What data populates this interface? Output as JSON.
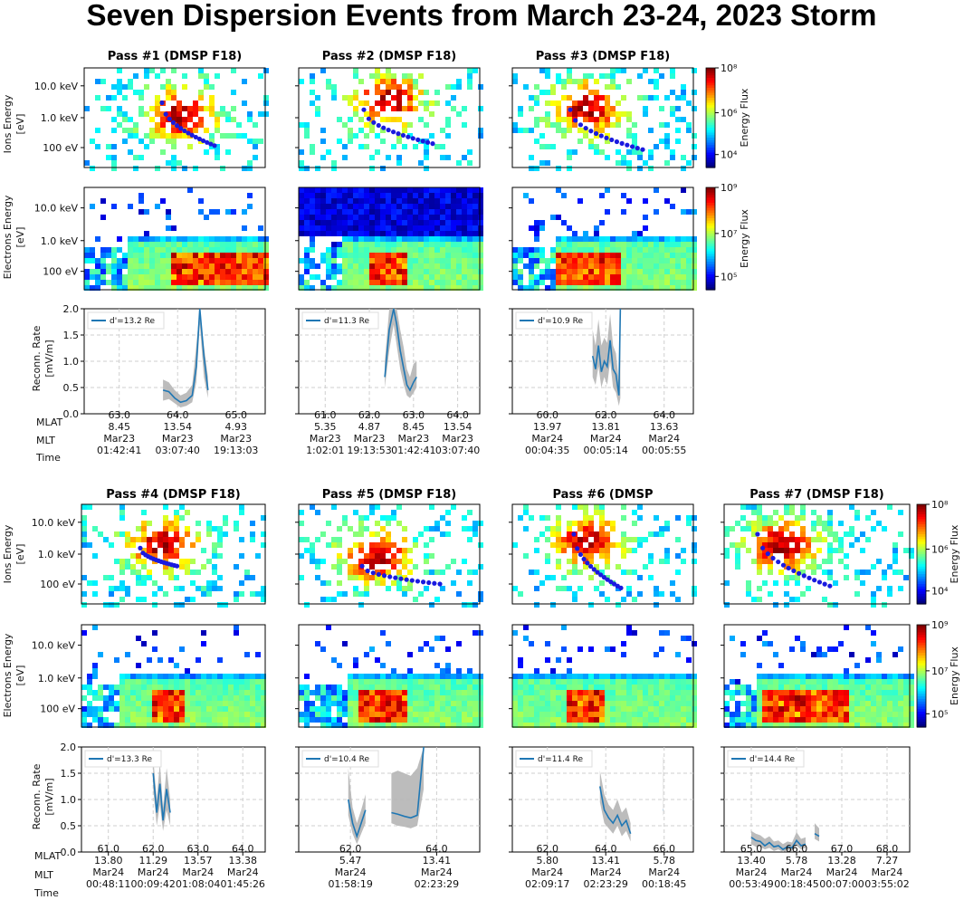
{
  "title": "Seven Dispersion Events from March 23-24, 2023 Storm",
  "row_labels": {
    "ions": [
      "Ions Energy",
      "[eV]"
    ],
    "electrons": [
      "Electrons Energy",
      "[eV]"
    ],
    "recon": [
      "Reconn. Rate",
      "[mV/m]"
    ],
    "mlat": "MLAT",
    "mlt": "MLT",
    "time": "Time"
  },
  "energy_ticks": [
    "10.0 keV",
    "1.0 keV",
    "100 eV"
  ],
  "colorbars": {
    "label": "Energy Flux",
    "ions_ticks": [
      "10⁸",
      "10⁶",
      "10⁴"
    ],
    "electrons_ticks": [
      "10⁹",
      "10⁷",
      "10⁵"
    ]
  },
  "colors": {
    "line": "#1f77b4",
    "band": "#b5b5b5",
    "fit": "#1a1adf",
    "grid": "#cfcfcf"
  },
  "chart_data": [
    {
      "type": "line",
      "title": "Pass #1 (DMSP F18)",
      "legend": "d'=13.2 Re",
      "ylim": [
        0.0,
        2.0
      ],
      "yticks": [
        "2.0",
        "1.5",
        "1.0",
        "0.5",
        "0.0"
      ],
      "xticks": [
        {
          "mlat": "63.0",
          "mlt": "8.45",
          "date": "Mar23",
          "time": "01:42:41"
        },
        {
          "mlat": "64.0",
          "mlt": "13.54",
          "date": "Mar23",
          "time": "03:07:40"
        },
        {
          "mlat": "65.0",
          "mlt": "4.93",
          "date": "Mar23",
          "time": "19:13:03"
        }
      ],
      "segments": [
        {
          "x": [
            63.75,
            63.85,
            63.95,
            64.05,
            64.15,
            64.25,
            64.32,
            64.38,
            64.45,
            64.52
          ],
          "y": [
            0.45,
            0.42,
            0.3,
            0.22,
            0.25,
            0.35,
            0.9,
            2.0,
            1.1,
            0.45
          ],
          "lo": [
            0.25,
            0.28,
            0.2,
            0.12,
            0.15,
            0.22,
            0.6,
            1.7,
            0.7,
            0.3
          ],
          "hi": [
            0.65,
            0.6,
            0.45,
            0.35,
            0.4,
            0.55,
            1.3,
            2.0,
            1.3,
            0.7
          ]
        }
      ]
    },
    {
      "type": "line",
      "title": "Pass #2 (DMSP F18)",
      "legend": "d'=11.3 Re",
      "ylim": [
        0.0,
        2.0
      ],
      "yticks": [],
      "xticks": [
        {
          "mlat": "61.0",
          "mlt": "5.35",
          "date": "Mar23",
          "time": "1:02:01"
        },
        {
          "mlat": "62.0",
          "mlt": "4.87",
          "date": "Mar23",
          "time": "19:13:53"
        },
        {
          "mlat": "63.0",
          "mlt": "8.45",
          "date": "Mar23",
          "time": "01:42:41"
        },
        {
          "mlat": "64.0",
          "mlt": "13.54",
          "date": "Mar23",
          "time": "03:07:40"
        }
      ],
      "segments": [
        {
          "x": [
            62.35,
            62.45,
            62.55,
            62.62,
            62.7,
            62.78,
            62.85,
            62.92,
            63.0,
            63.07
          ],
          "y": [
            0.7,
            1.6,
            2.0,
            1.7,
            1.2,
            0.85,
            0.55,
            0.45,
            0.6,
            0.7
          ],
          "lo": [
            0.5,
            1.2,
            1.7,
            1.3,
            0.85,
            0.55,
            0.35,
            0.3,
            0.4,
            0.5
          ],
          "hi": [
            1.0,
            2.0,
            2.0,
            2.0,
            1.6,
            1.25,
            0.85,
            0.7,
            0.95,
            1.0
          ]
        }
      ]
    },
    {
      "type": "line",
      "title": "Pass #3 (DMSP F18)",
      "legend": "d'=10.9 Re",
      "ylim": [
        0.0,
        2.0
      ],
      "yticks": [],
      "xticks": [
        {
          "mlat": "60.0",
          "mlt": "13.97",
          "date": "Mar24",
          "time": "00:04:35"
        },
        {
          "mlat": "62.0",
          "mlt": "13.81",
          "date": "Mar24",
          "time": "00:05:14"
        },
        {
          "mlat": "64.0",
          "mlt": "13.63",
          "date": "Mar24",
          "time": "00:05:55"
        }
      ],
      "segments": [
        {
          "x": [
            61.55,
            61.65,
            61.75,
            61.85,
            61.95,
            62.05,
            62.15,
            62.25,
            62.35,
            62.45,
            62.5
          ],
          "y": [
            1.1,
            0.85,
            1.3,
            0.8,
            1.0,
            0.9,
            1.4,
            0.85,
            0.75,
            0.35,
            2.0
          ],
          "lo": [
            0.7,
            0.55,
            0.9,
            0.5,
            0.7,
            0.55,
            1.0,
            0.5,
            0.4,
            0.15,
            0.3
          ],
          "hi": [
            1.6,
            1.3,
            1.8,
            1.3,
            1.45,
            1.35,
            1.9,
            1.3,
            1.15,
            0.6,
            2.0
          ]
        }
      ]
    },
    {
      "type": "line",
      "title": "Pass #4 (DMSP F18)",
      "legend": "d'=13.3 Re",
      "ylim": [
        0.0,
        2.0
      ],
      "yticks": [
        "2.0",
        "1.5",
        "1.0",
        "0.5",
        "0.0"
      ],
      "xticks": [
        {
          "mlat": "61.0",
          "mlt": "13.80",
          "date": "Mar24",
          "time": "00:48:11"
        },
        {
          "mlat": "62.0",
          "mlt": "11.29",
          "date": "Mar24",
          "time": "00:09:42"
        },
        {
          "mlat": "63.0",
          "mlt": "13.57",
          "date": "Mar24",
          "time": "01:08:04"
        },
        {
          "mlat": "64.0",
          "mlt": "13.38",
          "date": "Mar24",
          "time": "01:45:26"
        }
      ],
      "segments": [
        {
          "x": [
            62.0,
            62.08,
            62.15,
            62.22,
            62.3,
            62.38
          ],
          "y": [
            1.5,
            0.75,
            1.3,
            0.6,
            1.2,
            0.75
          ],
          "lo": [
            1.2,
            0.5,
            0.9,
            0.4,
            0.8,
            0.5
          ],
          "hi": [
            1.8,
            1.0,
            1.7,
            0.85,
            1.6,
            1.0
          ]
        }
      ]
    },
    {
      "type": "line",
      "title": "Pass #5 (DMSP F18)",
      "legend": "d'=10.4 Re",
      "ylim": [
        0.0,
        2.0
      ],
      "yticks": [],
      "xticks": [
        {
          "mlat": "62.0",
          "mlt": "5.47",
          "date": "Mar24",
          "time": "01:58:19"
        },
        {
          "mlat": "64.0",
          "mlt": "13.41",
          "date": "Mar24",
          "time": "02:23:29"
        }
      ],
      "segments": [
        {
          "x": [
            61.95,
            62.05,
            62.15,
            62.25,
            62.35
          ],
          "y": [
            1.0,
            0.55,
            0.3,
            0.55,
            0.8
          ],
          "lo": [
            0.7,
            0.35,
            0.15,
            0.35,
            0.55
          ],
          "hi": [
            1.6,
            0.85,
            0.55,
            0.8,
            1.1
          ]
        },
        {
          "x": [
            62.95,
            63.1,
            63.25,
            63.4,
            63.55,
            63.7
          ],
          "y": [
            0.75,
            0.72,
            0.68,
            0.65,
            0.7,
            2.0
          ],
          "lo": [
            0.55,
            0.5,
            0.48,
            0.45,
            0.5,
            1.2
          ],
          "hi": [
            1.5,
            1.55,
            1.5,
            1.45,
            1.6,
            2.0
          ]
        }
      ]
    },
    {
      "type": "line",
      "title": "Pass #6 (DMSP",
      "legend": "d'=11.4 Re",
      "ylim": [
        0.0,
        2.0
      ],
      "yticks": [],
      "xticks": [
        {
          "mlat": "62.0",
          "mlt": "5.80",
          "date": "Mar24",
          "time": "02:09:17"
        },
        {
          "mlat": "64.0",
          "mlt": "13.41",
          "date": "Mar24",
          "time": "02:23:29"
        },
        {
          "mlat": "66.0",
          "mlt": "5.78",
          "date": "Mar24",
          "time": "00:18:45"
        }
      ],
      "segments": [
        {
          "x": [
            63.8,
            63.95,
            64.1,
            64.25,
            64.4,
            64.55,
            64.7,
            64.85
          ],
          "y": [
            1.25,
            0.8,
            0.65,
            0.55,
            0.7,
            0.5,
            0.6,
            0.35
          ],
          "lo": [
            0.95,
            0.55,
            0.45,
            0.35,
            0.5,
            0.3,
            0.4,
            0.2
          ],
          "hi": [
            1.55,
            1.1,
            0.9,
            0.8,
            1.0,
            0.75,
            0.85,
            0.55
          ]
        },
        {
          "x": [
            65.95,
            65.96
          ],
          "y": [
            0.8,
            0.8
          ],
          "lo": [
            0.7,
            0.7
          ],
          "hi": [
            1.8,
            1.8
          ]
        }
      ]
    },
    {
      "type": "line",
      "title": "Pass #7 (DMSP F18)",
      "legend": "d'=14.4 Re",
      "ylim": [
        0.0,
        2.0
      ],
      "yticks": [],
      "xticks": [
        {
          "mlat": "65.0",
          "mlt": "13.40",
          "date": "Mar24",
          "time": "00:53:49"
        },
        {
          "mlat": "66.0",
          "mlt": "5.78",
          "date": "Mar24",
          "time": "00:18:45"
        },
        {
          "mlat": "67.0",
          "mlt": "13.28",
          "date": "Mar24",
          "time": "00:07:00"
        },
        {
          "mlat": "68.0",
          "mlt": "7.27",
          "date": "Mar24",
          "time": "03:55:02"
        }
      ],
      "segments": [
        {
          "x": [
            65.0,
            65.1,
            65.2,
            65.3,
            65.4,
            65.5,
            65.6,
            65.7,
            65.8,
            65.9,
            66.0,
            66.1,
            66.2
          ],
          "y": [
            0.28,
            0.22,
            0.2,
            0.12,
            0.18,
            0.1,
            0.12,
            0.05,
            0.1,
            0.08,
            0.22,
            0.12,
            0.15
          ],
          "lo": [
            0.15,
            0.1,
            0.1,
            0.05,
            0.08,
            0.02,
            0.05,
            0.0,
            0.03,
            0.02,
            0.12,
            0.05,
            0.08
          ],
          "hi": [
            0.4,
            0.35,
            0.32,
            0.25,
            0.3,
            0.2,
            0.22,
            0.15,
            0.2,
            0.18,
            0.38,
            0.25,
            0.28
          ]
        },
        {
          "x": [
            66.4,
            66.5
          ],
          "y": [
            0.35,
            0.3
          ],
          "lo": [
            0.25,
            0.2
          ],
          "hi": [
            0.55,
            0.45
          ]
        }
      ]
    }
  ]
}
